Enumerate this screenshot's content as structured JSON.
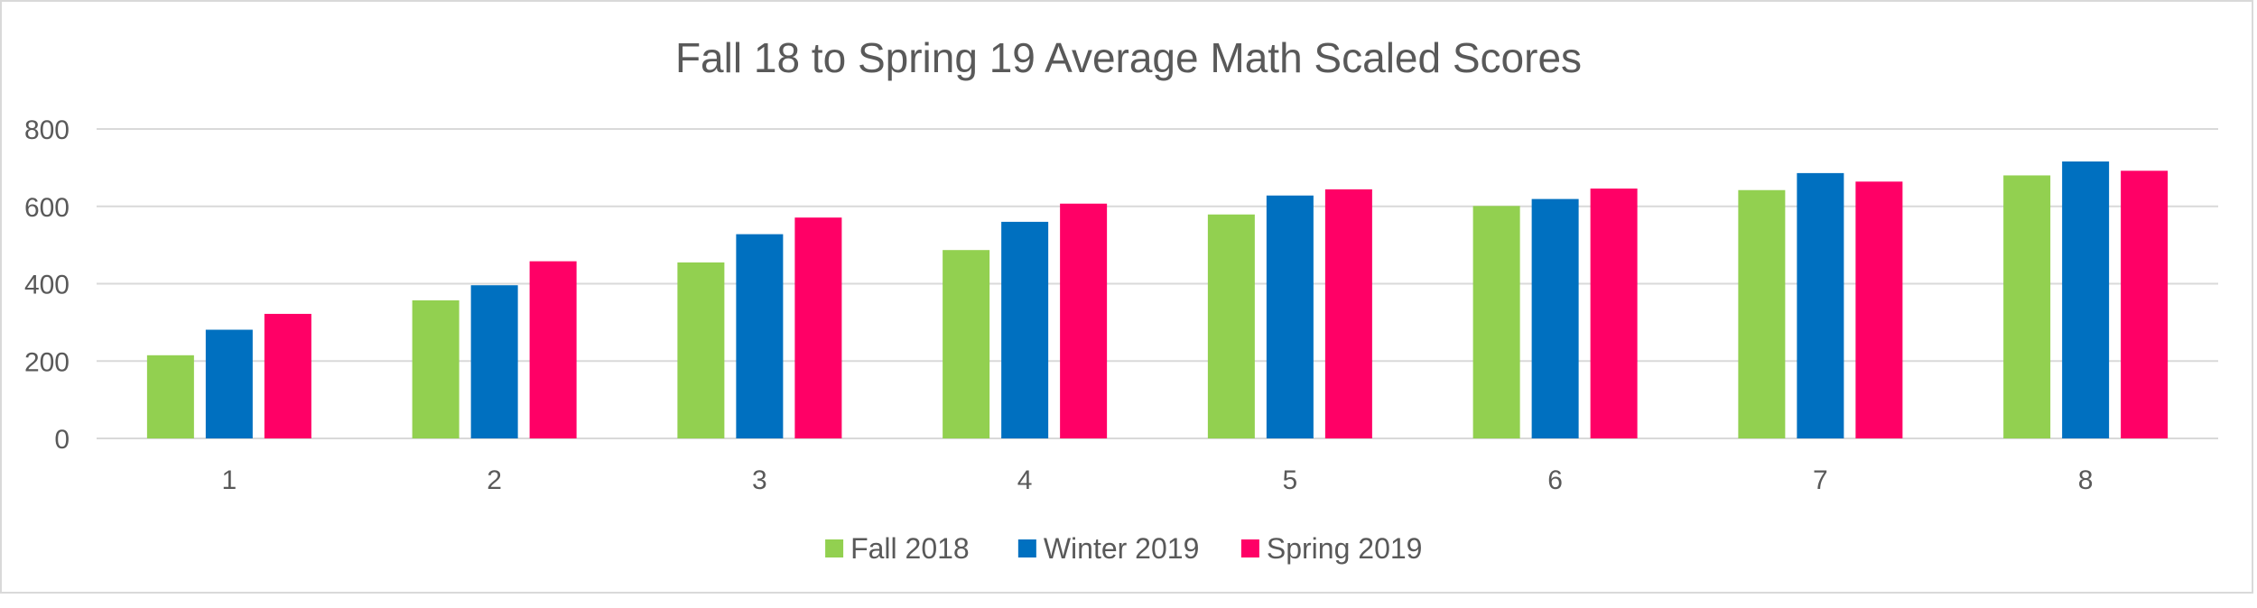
{
  "chart_data": {
    "type": "bar",
    "title": "Fall 18 to Spring 19 Average Math Scaled Scores",
    "xlabel": "",
    "ylabel": "",
    "categories": [
      "1",
      "2",
      "3",
      "4",
      "5",
      "6",
      "7",
      "8"
    ],
    "ylim": [
      0,
      800
    ],
    "yticks": [
      "0",
      "200",
      "400",
      "600",
      "800"
    ],
    "grid": true,
    "legend_position": "bottom",
    "series": [
      {
        "name": "Fall 2018",
        "color": "#92d050",
        "values": [
          215,
          357,
          455,
          487,
          579,
          601,
          642,
          680
        ]
      },
      {
        "name": "Winter 2019",
        "color": "#0070c0",
        "values": [
          281,
          396,
          528,
          560,
          628,
          619,
          686,
          716
        ]
      },
      {
        "name": "Spring 2019",
        "color": "#ff0066",
        "values": [
          322,
          458,
          571,
          607,
          644,
          646,
          664,
          692
        ]
      }
    ]
  }
}
